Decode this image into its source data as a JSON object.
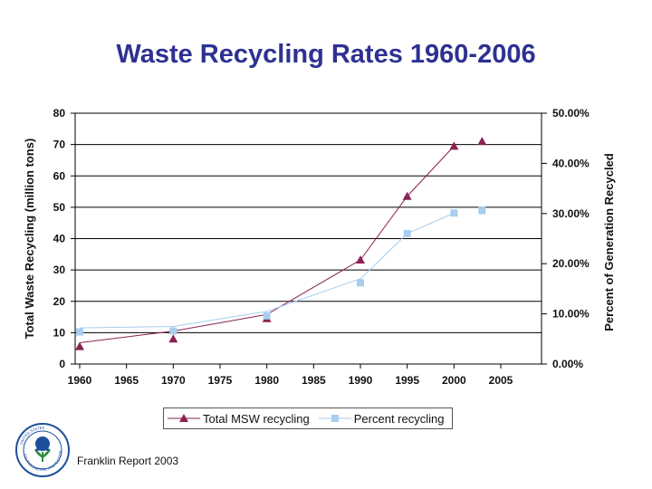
{
  "title": "Waste Recycling Rates 1960-2006",
  "footnote": "Franklin Report 2003",
  "logo": {
    "icon": "epa-seal-icon",
    "text": "UNITED STATES ENVIRONMENTAL PROTECTION AGENCY"
  },
  "colors": {
    "title": "#2e3192",
    "msw": "#8b2252",
    "percent": "#a8cdee",
    "grid": "#000000"
  },
  "chart_data": {
    "type": "line",
    "title": "Waste Recycling Rates 1960-2006",
    "xlabel": "",
    "ylabel": "Total Waste Recycling (million tons)",
    "y2label": "Percent of Generation Recycled",
    "xlim": [
      1960,
      2010
    ],
    "ylim": [
      0,
      80
    ],
    "y2lim": [
      0,
      50
    ],
    "x_ticks": [
      "1960",
      "1965",
      "1970",
      "1975",
      "1980",
      "1985",
      "1990",
      "1995",
      "2000",
      "2005"
    ],
    "y_ticks": [
      "0",
      "10",
      "20",
      "30",
      "40",
      "50",
      "60",
      "70",
      "80"
    ],
    "y2_ticks": [
      "0.00%",
      "10.00%",
      "20.00%",
      "30.00%",
      "40.00%",
      "50.00%"
    ],
    "grid": true,
    "legend_position": "bottom",
    "series": [
      {
        "name": "Total MSW recycling",
        "axis": "left",
        "marker": "triangle",
        "x": [
          1960,
          1970,
          1980,
          1990,
          1995,
          2000,
          2003
        ],
        "values": [
          5.6,
          8.0,
          14.5,
          33.2,
          53.5,
          69.5,
          71.0
        ],
        "line_x": [
          1960,
          1970,
          1980,
          1990,
          1995,
          2000
        ],
        "line_values": [
          6.8,
          10.5,
          15.8,
          33.2,
          53.5,
          69.5
        ]
      },
      {
        "name": "Percent recycling",
        "axis": "right",
        "marker": "square",
        "x": [
          1960,
          1970,
          1980,
          1990,
          1995,
          2000,
          2003
        ],
        "values": [
          6.4,
          6.6,
          9.6,
          16.2,
          26.0,
          30.1,
          30.6
        ],
        "line_x": [
          1960,
          1970,
          1980,
          1990,
          1995,
          2000
        ],
        "line_values": [
          7.2,
          7.5,
          10.5,
          17.0,
          26.0,
          30.1
        ]
      }
    ]
  }
}
